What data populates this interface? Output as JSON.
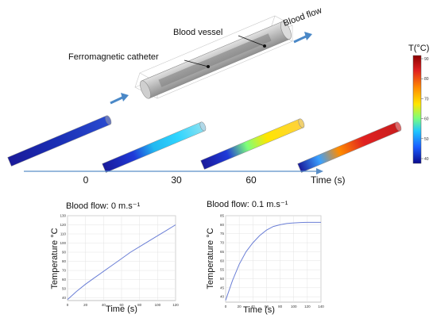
{
  "header": {
    "partial_text": ""
  },
  "schematic": {
    "vessel_label": "Blood vessel",
    "catheter_label": "Ferromagnetic catheter",
    "flow_label": "Blood flow",
    "time_axis_label": "Time (s)",
    "time_ticks": [
      "0",
      "30",
      "60"
    ]
  },
  "colorbar": {
    "title": "T(°C)",
    "ticks": [
      "90",
      "80",
      "70",
      "60",
      "50",
      "40"
    ],
    "colors": [
      "#8b0000",
      "#e02020",
      "#ff8c00",
      "#ffe600",
      "#7dff7a",
      "#20c8ff",
      "#1a5cff",
      "#0a0a8c"
    ]
  },
  "chart_data": [
    {
      "type": "line",
      "title": "Blood flow: 0 m.s⁻¹",
      "xlabel": "Time (s)",
      "ylabel": "Temperature °C",
      "x_ticks": [
        "0",
        "20",
        "40",
        "60",
        "80",
        "100",
        "120"
      ],
      "y_ticks": [
        "40",
        "50",
        "60",
        "70",
        "80",
        "90",
        "100",
        "110",
        "120",
        "130"
      ],
      "xlim": [
        0,
        120
      ],
      "ylim": [
        37,
        130
      ],
      "series": [
        {
          "x": [
            0,
            10,
            20,
            30,
            40,
            50,
            60,
            70,
            80,
            90,
            100,
            110,
            120
          ],
          "y": [
            38,
            47,
            55,
            62,
            69,
            76,
            83,
            90,
            96,
            102,
            108,
            114,
            120
          ]
        }
      ]
    },
    {
      "type": "line",
      "title": "Blood flow: 0.1 m.s⁻¹",
      "xlabel": "Time (s)",
      "ylabel": "Temperature °C",
      "x_ticks": [
        "0",
        "20",
        "40",
        "60",
        "80",
        "100",
        "120",
        "140"
      ],
      "y_ticks": [
        "40",
        "45",
        "50",
        "55",
        "60",
        "65",
        "70",
        "75",
        "80",
        "85"
      ],
      "xlim": [
        0,
        140
      ],
      "ylim": [
        37,
        85
      ],
      "series": [
        {
          "x": [
            0,
            10,
            20,
            30,
            40,
            50,
            60,
            70,
            80,
            90,
            100,
            110,
            120,
            130,
            140
          ],
          "y": [
            38,
            49,
            58,
            65,
            70,
            74,
            77,
            79,
            80,
            80.7,
            81,
            81.2,
            81.3,
            81.3,
            81.3
          ]
        }
      ]
    }
  ]
}
